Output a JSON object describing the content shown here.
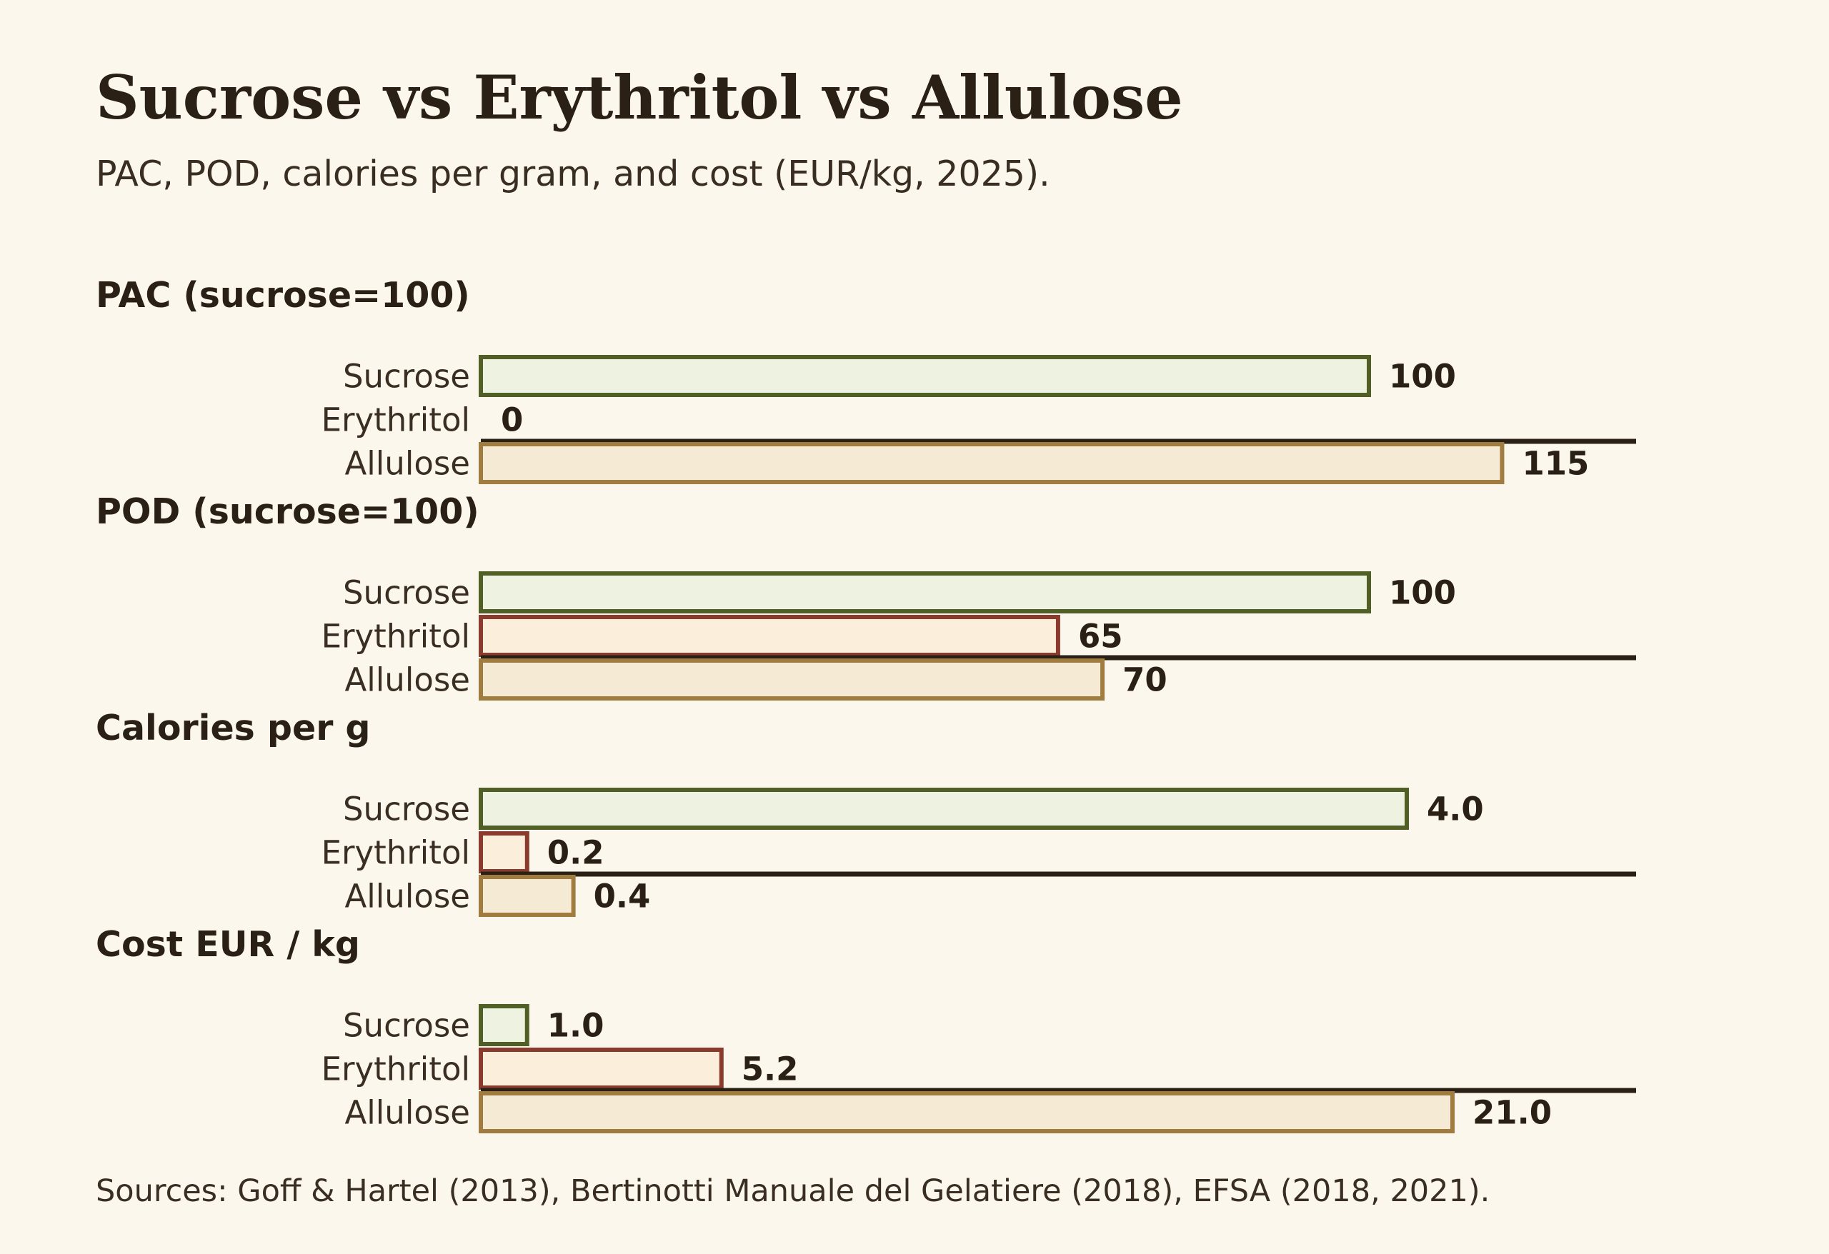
{
  "title": "Sucrose vs Erythritol vs Allulose",
  "subtitle": "PAC, POD, calories per gram, and cost (EUR/kg, 2025).",
  "source": "Sources: Goff & Hartel (2013), Bertinotti Manuale del Gelatiere (2018), EFSA (2018, 2021).",
  "colors": {
    "background": "#fbf7ec",
    "text": "#2b2015",
    "sucrose_stroke": "#4f5f25",
    "sucrose_fill": "#eef2e1",
    "erythritol_stroke": "#8a3b2e",
    "erythritol_fill": "#fbeedb",
    "allulose_stroke": "#a07c40",
    "allulose_fill": "#f5ead3",
    "baseline": "#2b2015"
  },
  "chart_data": [
    {
      "type": "bar",
      "orientation": "horizontal",
      "title": "PAC (sucrose=100)",
      "categories": [
        "Sucrose",
        "Erythritol",
        "Allulose"
      ],
      "values": [
        100,
        0,
        115
      ],
      "labels": [
        "100",
        "0",
        "115"
      ],
      "xlim": [
        0,
        130
      ]
    },
    {
      "type": "bar",
      "orientation": "horizontal",
      "title": "POD (sucrose=100)",
      "categories": [
        "Sucrose",
        "Erythritol",
        "Allulose"
      ],
      "values": [
        100,
        65,
        70
      ],
      "labels": [
        "100",
        "65",
        "70"
      ],
      "xlim": [
        0,
        130
      ]
    },
    {
      "type": "bar",
      "orientation": "horizontal",
      "title": "Calories per g",
      "categories": [
        "Sucrose",
        "Erythritol",
        "Allulose"
      ],
      "values": [
        4.0,
        0.2,
        0.4
      ],
      "labels": [
        "4.0",
        "0.2",
        "0.4"
      ],
      "xlim": [
        0,
        5
      ]
    },
    {
      "type": "bar",
      "orientation": "horizontal",
      "title": "Cost EUR / kg",
      "categories": [
        "Sucrose",
        "Erythritol",
        "Allulose"
      ],
      "values": [
        1.0,
        5.2,
        21.0
      ],
      "labels": [
        "1.0",
        "5.2",
        "21.0"
      ],
      "xlim": [
        0,
        25
      ]
    }
  ]
}
